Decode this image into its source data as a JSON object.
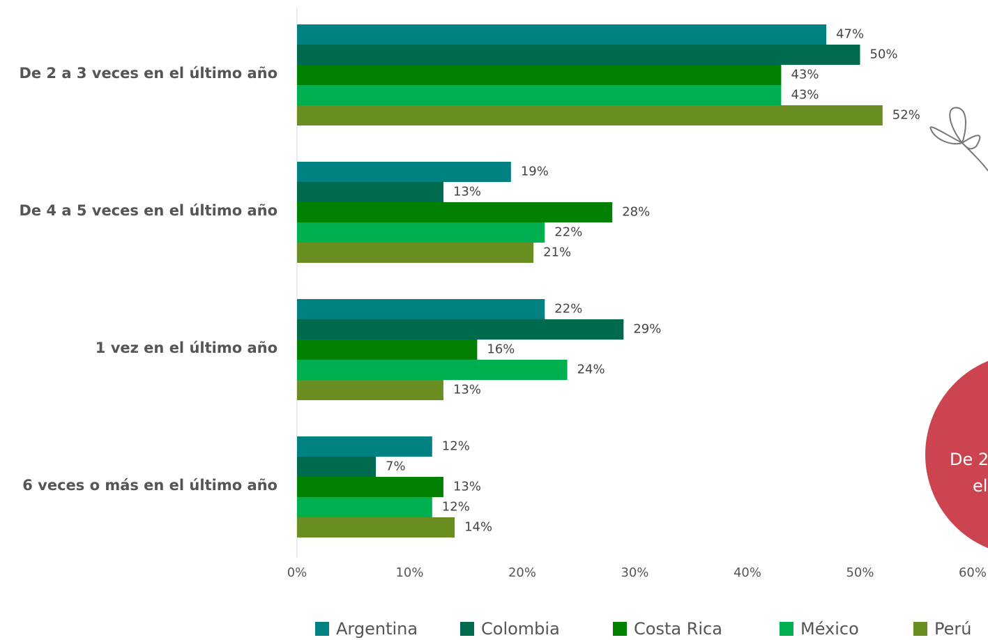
{
  "chart_data": {
    "type": "hbar",
    "categories": [
      "De 2 a 3 veces en el último año",
      "De 4 a 5 veces en el último año",
      "1 vez en el último año",
      "6 veces o más en el último año"
    ],
    "series": [
      {
        "name": "Argentina",
        "color": "#008080",
        "values": [
          47,
          19,
          22,
          12
        ],
        "value_labels": [
          "47%",
          "19%",
          "22%",
          "12%"
        ]
      },
      {
        "name": "Colombia",
        "color": "#006a4e",
        "values": [
          50,
          13,
          29,
          7
        ],
        "value_labels": [
          "50%",
          "13%",
          "29%",
          "7%"
        ]
      },
      {
        "name": "Costa Rica",
        "color": "#008000",
        "values": [
          43,
          28,
          16,
          13
        ],
        "value_labels": [
          "43%",
          "28%",
          "16%",
          "13%"
        ]
      },
      {
        "name": "México",
        "color": "#00b050",
        "values": [
          43,
          22,
          24,
          12
        ],
        "value_labels": [
          "43%",
          "22%",
          "24%",
          "12%"
        ]
      },
      {
        "name": "Perú",
        "color": "#6b8e23",
        "values": [
          52,
          21,
          13,
          14
        ],
        "value_labels": [
          "52%",
          "21%",
          "13%",
          "14%"
        ]
      }
    ],
    "xlim": [
      0,
      60
    ],
    "xticks": [
      {
        "value": 0,
        "label": "0%"
      },
      {
        "value": 10,
        "label": "10%"
      },
      {
        "value": 20,
        "label": "20%"
      },
      {
        "value": 30,
        "label": "30%"
      },
      {
        "value": 40,
        "label": "40%"
      },
      {
        "value": 50,
        "label": "50%"
      },
      {
        "value": 60,
        "label": "60%"
      }
    ],
    "annotation": [
      "De 2",
      "el"
    ]
  }
}
